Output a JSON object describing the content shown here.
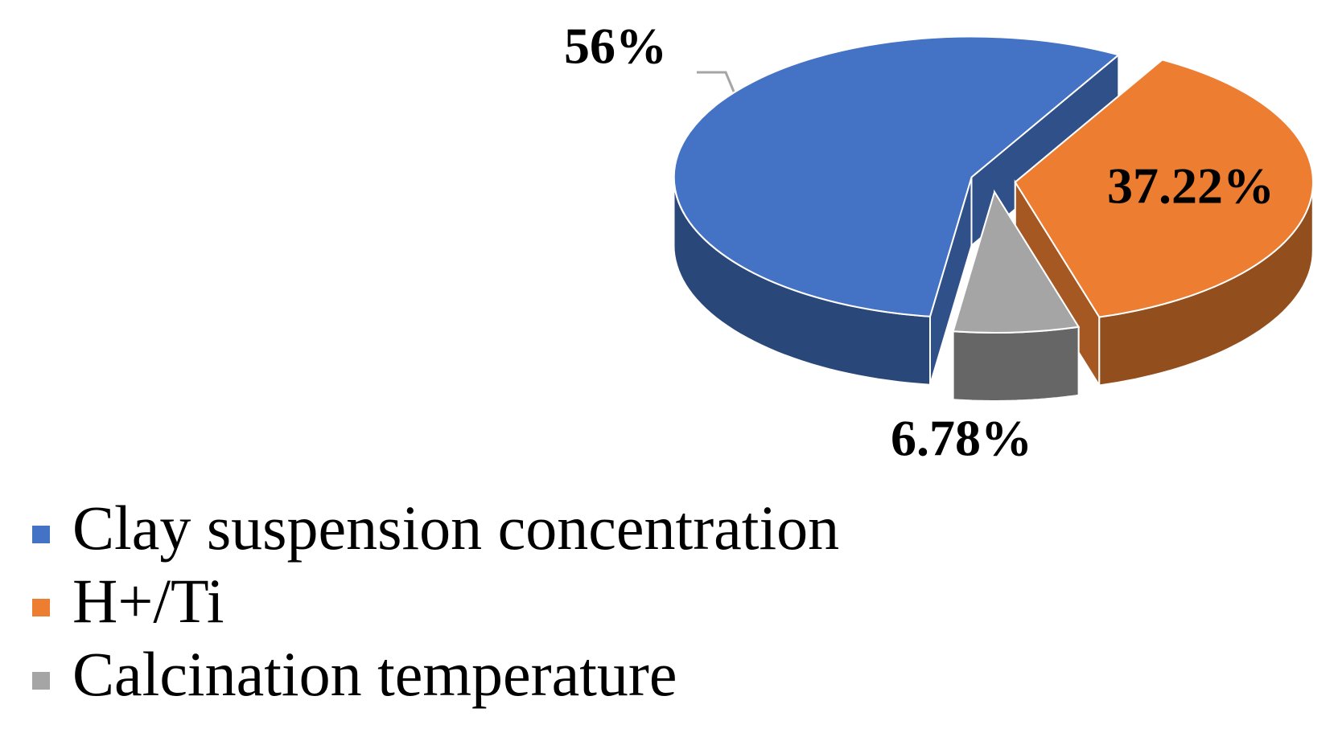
{
  "chart_data": {
    "type": "pie",
    "categories": [
      "Clay suspension concentration",
      "H+/Ti",
      "Calcination temperature"
    ],
    "values": [
      56,
      37.22,
      6.78
    ],
    "value_labels": [
      "56%",
      "37.22%",
      "6.78%"
    ],
    "colors": [
      "#4472c4",
      "#ed7d31",
      "#a5a5a5"
    ],
    "legend": "bottom-left"
  }
}
